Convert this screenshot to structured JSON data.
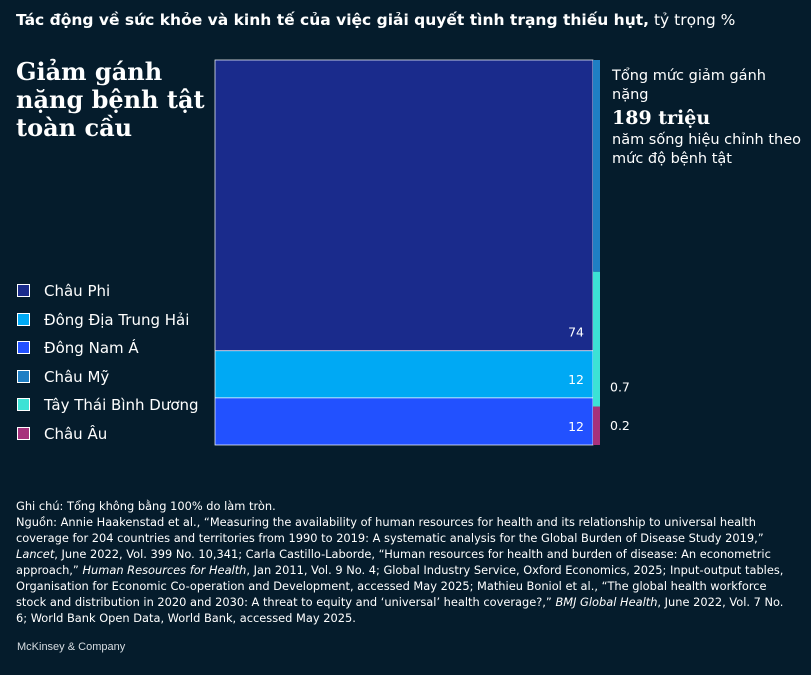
{
  "header": {
    "title_main": "Tác động về sức khỏe và kinh tế của việc giải quyết tình trạng thiếu hụt,",
    "title_unit": "tỷ trọng %"
  },
  "panel_title": "Giảm gánh nặng bệnh tật toàn cầu",
  "total": {
    "label_top": "Tổng mức giảm gánh nặng",
    "value": "189 triệu",
    "label_bottom": "năm sống hiệu chỉnh theo mức độ bệnh tật"
  },
  "chart_data": {
    "type": "stacked_bar",
    "unit": "%",
    "title": "Giảm gánh nặng bệnh tật toàn cầu",
    "categories": [
      "Châu Phi",
      "Đông Địa Trung Hải",
      "Đông Nam Á",
      "Châu Mỹ",
      "Tây Thái Bình Dương",
      "Châu Âu"
    ],
    "series": [
      {
        "name": "Châu Phi",
        "value": 74,
        "label": "74",
        "color": "#1a2b8c"
      },
      {
        "name": "Đông Địa Trung Hải",
        "value": 12,
        "label": "12",
        "color": "#00a9f4"
      },
      {
        "name": "Đông Nam Á",
        "value": 12,
        "label": "12",
        "color": "#2251ff"
      },
      {
        "name": "Châu Mỹ",
        "value": 1.1,
        "label": "",
        "color": "#1f7fc4"
      },
      {
        "name": "Tây Thái Bình Dương",
        "value": 0.7,
        "label": "0.7",
        "color": "#3ce2d5"
      },
      {
        "name": "Châu Âu",
        "value": 0.2,
        "label": "0.2",
        "color": "#a7317c"
      }
    ],
    "legend_position": "left"
  },
  "notes": {
    "note": "Ghi chú: Tổng không bằng 100% do làm tròn.",
    "source_segments": [
      {
        "text": "Nguồn: Annie Haakenstad et al., “Measuring the availability of human resources for health and its relationship to universal health coverage for 204 countries and territories from 1990 to 2019: A systematic analysis for the Global Burden of Disease Study 2019,” ",
        "italic": false
      },
      {
        "text": "Lancet",
        "italic": true
      },
      {
        "text": ", June 2022, Vol. 399 No. 10,341; Carla Castillo-Laborde, “Human resources for health and burden of disease: An econometric approach,” ",
        "italic": false
      },
      {
        "text": "Human Resources for Health",
        "italic": true
      },
      {
        "text": ", Jan 2011, Vol. 9 No. 4; Global Industry Service, Oxford Economics, 2025; Input-output tables, Organisation for Economic Co-operation and Development, accessed May 2025; Mathieu Boniol et al., “The global health workforce stock and distribution in 2020 and 2030: A threat to equity and ‘universal’ health coverage?,” ",
        "italic": false
      },
      {
        "text": "BMJ Global Health",
        "italic": true
      },
      {
        "text": ", June 2022, Vol. 7 No. 6; World Bank Open Data, World Bank, accessed May 2025.",
        "italic": false
      }
    ]
  },
  "brand": "McKinsey & Company"
}
